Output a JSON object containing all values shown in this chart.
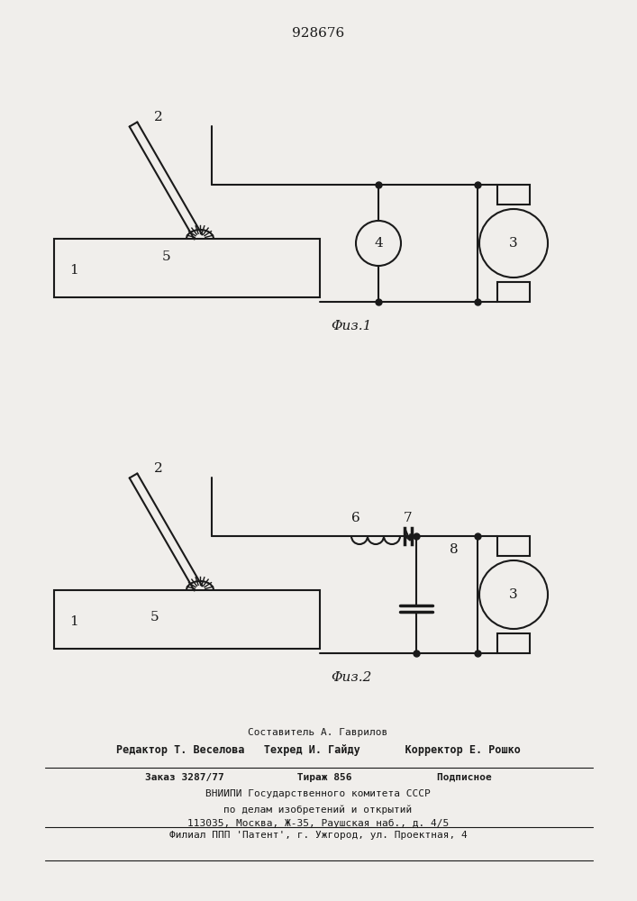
{
  "title": "928676",
  "fig1_label": "Φuз.1",
  "fig2_label": "Φuз.2",
  "background_color": "#f0eeeb",
  "line_color": "#1a1a1a",
  "footer_lines": [
    "Составитель А. Гаврилов",
    "Редактор Т. Веселова   Техред И. Гайду       Корректор Е. Рошко",
    "Заказ 3287/77            Тираж 856              Подписное",
    "ВНИИПИ Государственного комитета СССР",
    "по делам изобретений и открытий",
    "113035, Москва, Ж-35, Раушская наб., д. 4/5",
    "Филиал ППП 'Патент', г. Ужгород, ул. Проектная, 4"
  ]
}
